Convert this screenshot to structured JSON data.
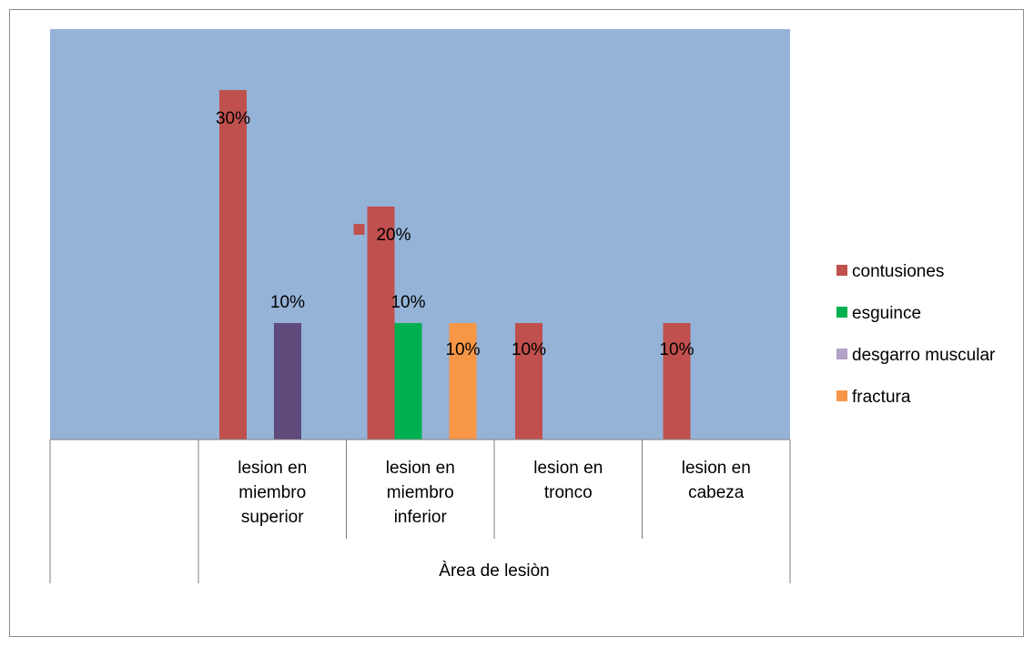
{
  "chart_data": {
    "type": "bar",
    "categories": [
      [
        "lesion en",
        "miembro",
        "superior"
      ],
      [
        "lesion en",
        "miembro",
        "inferior"
      ],
      [
        "lesion en",
        "tronco"
      ],
      [
        "lesion en",
        "cabeza"
      ]
    ],
    "category_group_label": "Àrea de lesiòn",
    "series": [
      {
        "name": "contusiones",
        "color": "#c0504d",
        "values": [
          30,
          20,
          10,
          10
        ]
      },
      {
        "name": "esguince",
        "color": "#00b050",
        "values": [
          null,
          10,
          null,
          null
        ]
      },
      {
        "name": "desgarro muscular",
        "color": "#604a7b",
        "legend_color": "#b3a2c7",
        "values": [
          10,
          null,
          null,
          null
        ]
      },
      {
        "name": "fractura",
        "color": "#f79646",
        "values": [
          null,
          10,
          null,
          null
        ]
      }
    ],
    "value_suffix": "%",
    "ylim": [
      0,
      30
    ],
    "plot_background": "#95b3d7",
    "legend_position": "right",
    "grid": false
  }
}
